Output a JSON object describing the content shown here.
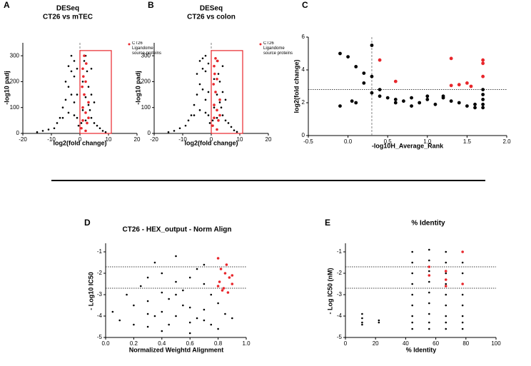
{
  "chart_data": [
    {
      "type": "scatter",
      "panel": "A",
      "title": "DESeq",
      "subtitle": "CT26 vs mTEC",
      "xlabel": "log2(fold change)",
      "ylabel": "-log10 padj",
      "xlim": [
        -20,
        20
      ],
      "ylim": [
        0,
        350
      ],
      "xticks": [
        -20,
        -10,
        0,
        10,
        20
      ],
      "yticks": [
        0,
        100,
        200,
        300
      ],
      "vlines": [
        0
      ],
      "region": {
        "x": [
          0,
          11
        ],
        "y": [
          0,
          320
        ],
        "color": "#e8262b"
      },
      "series": [
        {
          "color": "#000000",
          "x": [
            -15,
            -13,
            -11,
            -9,
            -8,
            -7,
            -6,
            -5,
            -5,
            -4,
            -4,
            -3,
            -3,
            -3,
            -2,
            -2,
            -2,
            -1,
            -1,
            -1,
            -0.5,
            0.5,
            1,
            1,
            1.5,
            2,
            2,
            2.5,
            3,
            3,
            3.5,
            4,
            4,
            5,
            5,
            6,
            7,
            8,
            9,
            3,
            2,
            -2,
            -4,
            -6,
            4
          ],
          "values": [
            5,
            10,
            15,
            20,
            40,
            60,
            100,
            130,
            200,
            180,
            260,
            150,
            240,
            300,
            120,
            220,
            280,
            60,
            150,
            250,
            30,
            40,
            90,
            200,
            280,
            140,
            300,
            240,
            110,
            180,
            90,
            60,
            150,
            40,
            120,
            30,
            20,
            10,
            5,
            60,
            50,
            70,
            80,
            60,
            250
          ]
        },
        {
          "name": "CT26 Ligandome source proteins",
          "color": "#e8262b",
          "x": [
            0.5,
            1,
            1,
            1.5,
            2,
            2,
            2.5,
            3,
            1,
            1.5,
            2,
            0.8,
            3,
            1.2,
            2.2
          ],
          "values": [
            20,
            50,
            100,
            150,
            200,
            80,
            40,
            120,
            250,
            300,
            10,
            180,
            60,
            220,
            270
          ]
        }
      ]
    },
    {
      "type": "scatter",
      "panel": "B",
      "title": "DESeq",
      "subtitle": "CT26 vs colon",
      "xlabel": "log2(fold change)",
      "ylabel": "-log10 padj",
      "xlim": [
        -20,
        20
      ],
      "ylim": [
        0,
        350
      ],
      "xticks": [
        -20,
        -10,
        0,
        10,
        20
      ],
      "yticks": [
        0,
        100,
        200,
        300
      ],
      "vlines": [
        0
      ],
      "region": {
        "x": [
          0,
          11
        ],
        "y": [
          0,
          320
        ],
        "color": "#e8262b"
      },
      "series": [
        {
          "color": "#000000",
          "x": [
            -15,
            -13,
            -11,
            -9,
            -8,
            -7,
            -6,
            -5,
            -5,
            -4,
            -4,
            -3,
            -3,
            -3,
            -2,
            -2,
            -2,
            -1,
            -1,
            -1,
            -0.5,
            0.5,
            1,
            1,
            1.5,
            2,
            2,
            2.5,
            3,
            3,
            3.5,
            4,
            4,
            5,
            5,
            6,
            7,
            8,
            9,
            3,
            2,
            -2,
            -4,
            -6,
            4
          ],
          "values": [
            5,
            10,
            20,
            30,
            50,
            70,
            110,
            150,
            230,
            190,
            280,
            170,
            250,
            290,
            130,
            240,
            300,
            70,
            160,
            270,
            40,
            50,
            100,
            210,
            290,
            150,
            280,
            230,
            120,
            200,
            100,
            70,
            160,
            50,
            130,
            40,
            25,
            12,
            6,
            70,
            60,
            80,
            90,
            70,
            260
          ]
        },
        {
          "name": "CT26 Ligandome source proteins",
          "color": "#e8262b",
          "x": [
            0.5,
            1,
            1,
            1.5,
            2,
            2,
            2.5,
            3,
            1,
            1.5,
            2,
            0.8,
            3,
            1.2,
            2.2
          ],
          "values": [
            30,
            60,
            110,
            160,
            210,
            90,
            50,
            130,
            260,
            290,
            15,
            190,
            70,
            230,
            280
          ]
        }
      ]
    },
    {
      "type": "scatter",
      "panel": "C",
      "xlabel": "-log10H_Average_Rank",
      "ylabel": "log2(fold change)",
      "xlim": [
        -0.5,
        2.0
      ],
      "ylim": [
        0,
        6
      ],
      "xticks": [
        {
          "value": -0.5,
          "label": "-0.5"
        },
        {
          "value": 0,
          "label": "0.0"
        },
        0.5,
        {
          "value": 1,
          "label": "1.0"
        },
        1.5,
        {
          "value": 2,
          "label": "2.0"
        }
      ],
      "yticks": [
        0,
        2,
        4,
        6
      ],
      "vlines": [
        0.3
      ],
      "hlines": [
        2.8
      ],
      "series": [
        {
          "color": "#000000",
          "x": [
            -0.1,
            0,
            0.1,
            0.2,
            0.3,
            0.3,
            0.3,
            0.4,
            0.5,
            0.6,
            0.7,
            0.8,
            0.9,
            1.0,
            1.1,
            1.2,
            1.3,
            1.4,
            1.5,
            1.6,
            1.7,
            1.7,
            1.7,
            1.7,
            1.7,
            0.2,
            0.1,
            -0.1,
            0.6,
            1.0,
            1.6,
            0.4,
            0.8,
            1.2,
            0.05
          ],
          "values": [
            5,
            4.8,
            4.2,
            3.8,
            5.5,
            3.6,
            2.6,
            2.4,
            2.3,
            2.2,
            2.1,
            2.3,
            2.0,
            2.2,
            1.9,
            2.4,
            2.1,
            2.0,
            1.8,
            1.9,
            2.8,
            2.5,
            2.2,
            1.9,
            1.7,
            3.2,
            2.0,
            1.8,
            2.0,
            2.4,
            1.7,
            2.8,
            1.8,
            2.3,
            2.1
          ]
        },
        {
          "color": "#e8262b",
          "x": [
            0.4,
            0.6,
            1.3,
            1.4,
            1.5,
            1.7,
            1.7,
            1.7,
            1.3,
            1.55
          ],
          "values": [
            4.6,
            3.3,
            4.7,
            3.1,
            3.2,
            4.6,
            4.4,
            3.6,
            3.05,
            3.0
          ]
        }
      ]
    },
    {
      "type": "scatter",
      "panel": "D",
      "title": "CT26 - HEX_output - Norm Align",
      "xlabel": "Normalized Weightd Alignment",
      "ylabel": "- Log10 IC50",
      "xlim": [
        0,
        1
      ],
      "ylim": [
        -5,
        -0.6
      ],
      "xticks": [
        {
          "value": 0,
          "label": "0.0"
        },
        0.2,
        0.4,
        0.6,
        0.8,
        {
          "value": 1,
          "label": "1.0"
        }
      ],
      "yticks": [
        -5,
        -4,
        -3,
        -2,
        -1
      ],
      "hlines": [
        -1.7,
        -2.7
      ],
      "series": [
        {
          "color": "#000000",
          "x": [
            0.05,
            0.1,
            0.15,
            0.2,
            0.25,
            0.3,
            0.3,
            0.35,
            0.4,
            0.4,
            0.45,
            0.5,
            0.5,
            0.55,
            0.6,
            0.6,
            0.65,
            0.7,
            0.7,
            0.75,
            0.8,
            0.85,
            0.9,
            0.2,
            0.3,
            0.4,
            0.5,
            0.6,
            0.7,
            0.8,
            0.35,
            0.45,
            0.55,
            0.65,
            0.75,
            0.5,
            0.6,
            0.4,
            0.7,
            0.3
          ],
          "values": [
            -3.8,
            -4.2,
            -3.0,
            -3.5,
            -2.6,
            -2.2,
            -4.5,
            -1.5,
            -2.0,
            -4.7,
            -3.2,
            -1.2,
            -4.0,
            -2.8,
            -3.6,
            -4.8,
            -1.8,
            -4.2,
            -2.5,
            -3.0,
            -3.4,
            -3.9,
            -4.1,
            -4.4,
            -3.3,
            -3.8,
            -2.4,
            -4.3,
            -3.7,
            -4.6,
            -4.0,
            -4.4,
            -3.5,
            -4.1,
            -4.4,
            -3.0,
            -2.2,
            -2.9,
            -1.6,
            -3.9
          ]
        },
        {
          "color": "#e8262b",
          "x": [
            0.8,
            0.82,
            0.85,
            0.88,
            0.9,
            0.8,
            0.83,
            0.87,
            0.9,
            0.81,
            0.86,
            0.84
          ],
          "values": [
            -1.3,
            -1.8,
            -2.0,
            -2.2,
            -2.5,
            -2.6,
            -2.8,
            -2.9,
            -2.1,
            -2.4,
            -1.6,
            -2.7
          ]
        }
      ]
    },
    {
      "type": "scatter",
      "panel": "E",
      "title": "% Identity",
      "xlabel": "% Identity",
      "ylabel": "- Log IC50 (nM)",
      "xlim": [
        0,
        100
      ],
      "ylim": [
        -5,
        -0.6
      ],
      "xticks": [
        0,
        20,
        40,
        60,
        80,
        100
      ],
      "yticks": [
        -5,
        -4,
        -3,
        -2,
        -1
      ],
      "hlines": [
        -1.7,
        -2.7
      ],
      "series": [
        {
          "color": "#000000",
          "x": [
            11.1,
            11.1,
            11.1,
            11.1,
            22.2,
            22.2,
            44.4,
            44.4,
            44.4,
            44.4,
            44.4,
            44.4,
            44.4,
            44.4,
            44.4,
            55.6,
            55.6,
            55.6,
            55.6,
            55.6,
            55.6,
            55.6,
            55.6,
            55.6,
            66.7,
            66.7,
            66.7,
            66.7,
            66.7,
            66.7,
            66.7,
            66.7,
            66.7,
            77.8,
            77.8,
            77.8,
            77.8,
            77.8,
            77.8,
            77.8,
            77.8
          ],
          "values": [
            -3.9,
            -4.1,
            -4.3,
            -4.4,
            -4.2,
            -4.3,
            -1.0,
            -1.5,
            -2.0,
            -2.5,
            -3.0,
            -3.5,
            -4.0,
            -4.3,
            -4.6,
            -0.9,
            -1.4,
            -1.9,
            -2.4,
            -2.9,
            -3.4,
            -3.9,
            -4.3,
            -4.6,
            -1.0,
            -1.5,
            -2.0,
            -2.5,
            -3.0,
            -3.5,
            -4.0,
            -4.3,
            -4.6,
            -1.5,
            -2.0,
            -2.5,
            -3.0,
            -3.5,
            -4.0,
            -4.3,
            -4.6
          ]
        },
        {
          "color": "#e8262b",
          "x": [
            55.6,
            55.6,
            66.7,
            66.7,
            66.7,
            77.8,
            77.8
          ],
          "values": [
            -1.7,
            -2.1,
            -1.9,
            -2.3,
            -2.6,
            -1.0,
            -2.5
          ]
        }
      ]
    }
  ]
}
